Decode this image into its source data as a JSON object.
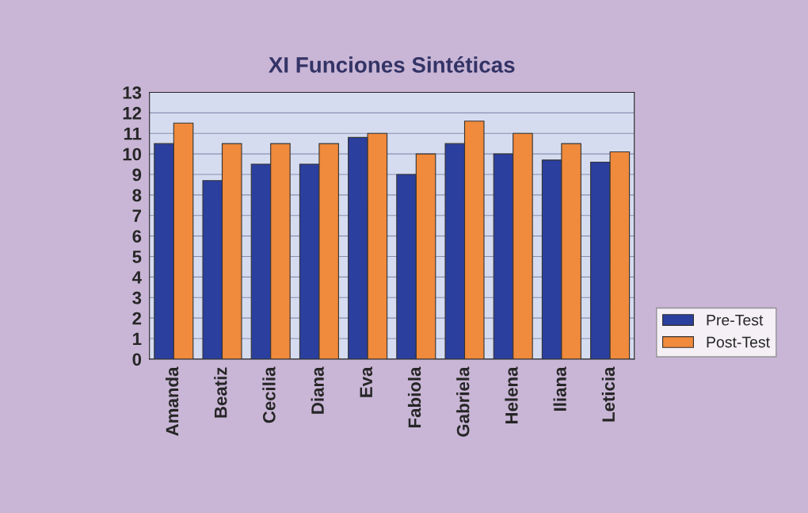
{
  "chart_data": {
    "type": "bar",
    "title": "XI Funciones Sintéticas",
    "categories": [
      "Amanda",
      "Beatiz",
      "Cecilia",
      "Diana",
      "Eva",
      "Fabiola",
      "Gabriela",
      "Helena",
      "Iliana",
      "Leticia"
    ],
    "series": [
      {
        "name": "Pre-Test",
        "color": "#2b3f9e",
        "values": [
          10.5,
          8.7,
          9.5,
          9.5,
          10.8,
          9.0,
          10.5,
          10.0,
          9.7,
          9.6
        ]
      },
      {
        "name": "Post-Test",
        "color": "#f08a3c",
        "values": [
          11.5,
          10.5,
          10.5,
          10.5,
          11.0,
          10.0,
          11.6,
          11.0,
          10.5,
          10.1
        ]
      }
    ],
    "ylim": [
      0,
      13
    ],
    "yticks": [
      0,
      1,
      2,
      3,
      4,
      5,
      6,
      7,
      8,
      9,
      10,
      11,
      12,
      13
    ],
    "grid": "y",
    "legend": "right"
  }
}
